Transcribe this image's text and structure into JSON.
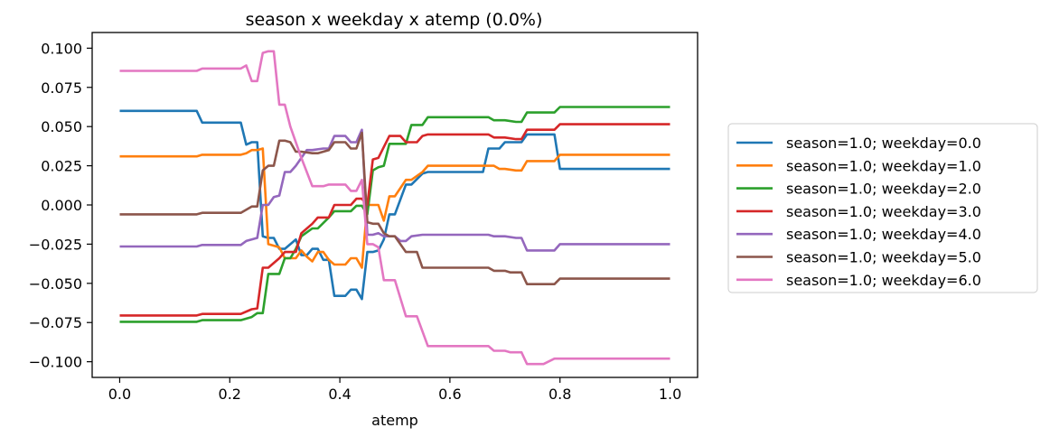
{
  "chart_data": {
    "type": "line",
    "title": "season x weekday x atemp (0.0%)",
    "xlabel": "atemp",
    "ylabel": "",
    "xlim": [
      -0.05,
      1.05
    ],
    "ylim": [
      -0.11,
      0.11
    ],
    "xticks": [
      0.0,
      0.2,
      0.4,
      0.6,
      0.8,
      1.0
    ],
    "xtick_labels": [
      "0.0",
      "0.2",
      "0.4",
      "0.6",
      "0.8",
      "1.0"
    ],
    "yticks": [
      0.1,
      0.075,
      0.05,
      0.025,
      0.0,
      -0.025,
      -0.05,
      -0.075,
      -0.1
    ],
    "ytick_labels": [
      "0.100",
      "0.075",
      "0.050",
      "0.025",
      "0.000",
      "−0.025",
      "−0.050",
      "−0.075",
      "−0.100"
    ],
    "grid": false,
    "legend_position": "right",
    "series": [
      {
        "name": "season=1.0; weekday=0.0",
        "color": "#1f77b4",
        "x": [
          0.0,
          0.14,
          0.15,
          0.22,
          0.23,
          0.24,
          0.25,
          0.26,
          0.27,
          0.28,
          0.29,
          0.3,
          0.32,
          0.33,
          0.34,
          0.35,
          0.36,
          0.37,
          0.38,
          0.39,
          0.41,
          0.42,
          0.43,
          0.44,
          0.45,
          0.46,
          0.47,
          0.48,
          0.49,
          0.5,
          0.52,
          0.53,
          0.55,
          0.56,
          0.58,
          0.66,
          0.67,
          0.69,
          0.7,
          0.73,
          0.74,
          0.79,
          0.8,
          1.0
        ],
        "y": [
          0.06,
          0.06,
          0.0525,
          0.0525,
          0.0385,
          0.04,
          0.04,
          -0.02,
          -0.021,
          -0.021,
          -0.028,
          -0.028,
          -0.022,
          -0.032,
          -0.032,
          -0.028,
          -0.028,
          -0.035,
          -0.035,
          -0.058,
          -0.058,
          -0.054,
          -0.054,
          -0.06,
          -0.03,
          -0.03,
          -0.029,
          -0.022,
          -0.006,
          -0.006,
          0.013,
          0.013,
          0.02,
          0.021,
          0.021,
          0.021,
          0.036,
          0.036,
          0.04,
          0.04,
          0.045,
          0.045,
          0.023,
          0.023
        ]
      },
      {
        "name": "season=1.0; weekday=1.0",
        "color": "#ff7f0e",
        "x": [
          0.0,
          0.14,
          0.15,
          0.22,
          0.23,
          0.24,
          0.25,
          0.26,
          0.27,
          0.29,
          0.3,
          0.32,
          0.33,
          0.34,
          0.35,
          0.36,
          0.37,
          0.38,
          0.39,
          0.41,
          0.42,
          0.43,
          0.44,
          0.45,
          0.46,
          0.47,
          0.48,
          0.49,
          0.5,
          0.52,
          0.53,
          0.55,
          0.56,
          0.68,
          0.69,
          0.7,
          0.72,
          0.73,
          0.74,
          0.79,
          0.8,
          1.0
        ],
        "y": [
          0.031,
          0.031,
          0.032,
          0.032,
          0.033,
          0.035,
          0.035,
          0.036,
          -0.025,
          -0.027,
          -0.034,
          -0.034,
          -0.029,
          -0.033,
          -0.036,
          -0.03,
          -0.03,
          -0.035,
          -0.038,
          -0.038,
          -0.034,
          -0.034,
          -0.04,
          0.0,
          0.0,
          0.0,
          -0.01,
          0.0055,
          0.0055,
          0.016,
          0.016,
          0.021,
          0.025,
          0.025,
          0.023,
          0.023,
          0.022,
          0.022,
          0.028,
          0.028,
          0.032,
          0.032
        ]
      },
      {
        "name": "season=1.0; weekday=2.0",
        "color": "#2ca02c",
        "x": [
          0.0,
          0.14,
          0.15,
          0.22,
          0.24,
          0.25,
          0.26,
          0.27,
          0.29,
          0.3,
          0.31,
          0.32,
          0.33,
          0.35,
          0.36,
          0.38,
          0.39,
          0.42,
          0.43,
          0.44,
          0.45,
          0.46,
          0.47,
          0.48,
          0.49,
          0.52,
          0.53,
          0.55,
          0.56,
          0.67,
          0.68,
          0.7,
          0.72,
          0.73,
          0.74,
          0.79,
          0.8,
          1.0
        ],
        "y": [
          -0.0745,
          -0.0745,
          -0.0735,
          -0.0735,
          -0.0715,
          -0.069,
          -0.069,
          -0.044,
          -0.044,
          -0.034,
          -0.034,
          -0.028,
          -0.02,
          -0.015,
          -0.015,
          -0.008,
          -0.004,
          -0.004,
          -0.0005,
          -0.0005,
          -0.006,
          0.022,
          0.024,
          0.025,
          0.039,
          0.039,
          0.051,
          0.051,
          0.056,
          0.056,
          0.054,
          0.054,
          0.053,
          0.053,
          0.059,
          0.059,
          0.0625,
          0.0625
        ]
      },
      {
        "name": "season=1.0; weekday=3.0",
        "color": "#d62728",
        "x": [
          0.0,
          0.14,
          0.15,
          0.22,
          0.24,
          0.25,
          0.26,
          0.27,
          0.29,
          0.3,
          0.32,
          0.33,
          0.35,
          0.36,
          0.38,
          0.39,
          0.42,
          0.43,
          0.44,
          0.45,
          0.46,
          0.47,
          0.49,
          0.51,
          0.52,
          0.54,
          0.55,
          0.56,
          0.67,
          0.68,
          0.7,
          0.72,
          0.73,
          0.74,
          0.79,
          0.8,
          1.0
        ],
        "y": [
          -0.0705,
          -0.0705,
          -0.0695,
          -0.0695,
          -0.0665,
          -0.066,
          -0.04,
          -0.04,
          -0.034,
          -0.03,
          -0.03,
          -0.018,
          -0.012,
          -0.008,
          -0.008,
          0.0,
          0.0,
          0.004,
          0.004,
          0.0,
          0.029,
          0.03,
          0.044,
          0.044,
          0.04,
          0.04,
          0.044,
          0.045,
          0.045,
          0.043,
          0.043,
          0.042,
          0.042,
          0.048,
          0.048,
          0.0515,
          0.0515
        ]
      },
      {
        "name": "season=1.0; weekday=4.0",
        "color": "#9467bd",
        "x": [
          0.0,
          0.14,
          0.15,
          0.22,
          0.23,
          0.25,
          0.26,
          0.27,
          0.28,
          0.29,
          0.3,
          0.31,
          0.32,
          0.33,
          0.34,
          0.35,
          0.37,
          0.38,
          0.39,
          0.41,
          0.42,
          0.43,
          0.44,
          0.45,
          0.46,
          0.47,
          0.48,
          0.5,
          0.51,
          0.52,
          0.53,
          0.55,
          0.56,
          0.67,
          0.68,
          0.7,
          0.72,
          0.73,
          0.74,
          0.79,
          0.8,
          1.0
        ],
        "y": [
          -0.0265,
          -0.0265,
          -0.0255,
          -0.0255,
          -0.023,
          -0.021,
          0.0,
          0.0,
          0.005,
          0.006,
          0.021,
          0.021,
          0.025,
          0.03,
          0.035,
          0.035,
          0.036,
          0.036,
          0.044,
          0.044,
          0.04,
          0.04,
          0.048,
          -0.019,
          -0.019,
          -0.018,
          -0.02,
          -0.02,
          -0.023,
          -0.023,
          -0.02,
          -0.019,
          -0.019,
          -0.019,
          -0.02,
          -0.02,
          -0.021,
          -0.021,
          -0.029,
          -0.029,
          -0.025,
          -0.025
        ]
      },
      {
        "name": "season=1.0; weekday=5.0",
        "color": "#8c564b",
        "x": [
          0.0,
          0.14,
          0.15,
          0.22,
          0.24,
          0.25,
          0.26,
          0.27,
          0.28,
          0.29,
          0.3,
          0.31,
          0.32,
          0.33,
          0.35,
          0.36,
          0.38,
          0.39,
          0.41,
          0.42,
          0.43,
          0.44,
          0.45,
          0.46,
          0.47,
          0.48,
          0.49,
          0.5,
          0.52,
          0.54,
          0.55,
          0.56,
          0.67,
          0.68,
          0.7,
          0.71,
          0.73,
          0.74,
          0.79,
          0.8,
          1.0
        ],
        "y": [
          -0.006,
          -0.006,
          -0.005,
          -0.005,
          -0.001,
          -0.001,
          0.022,
          0.025,
          0.025,
          0.041,
          0.041,
          0.04,
          0.034,
          0.034,
          0.033,
          0.033,
          0.035,
          0.04,
          0.04,
          0.036,
          0.036,
          0.046,
          -0.011,
          -0.012,
          -0.012,
          -0.018,
          -0.02,
          -0.02,
          -0.03,
          -0.03,
          -0.04,
          -0.04,
          -0.04,
          -0.042,
          -0.042,
          -0.043,
          -0.043,
          -0.0505,
          -0.0505,
          -0.047,
          -0.047
        ]
      },
      {
        "name": "season=1.0; weekday=6.0",
        "color": "#e377c2",
        "x": [
          0.0,
          0.14,
          0.15,
          0.22,
          0.23,
          0.24,
          0.25,
          0.26,
          0.27,
          0.28,
          0.29,
          0.3,
          0.31,
          0.33,
          0.35,
          0.37,
          0.38,
          0.41,
          0.42,
          0.43,
          0.44,
          0.45,
          0.46,
          0.47,
          0.48,
          0.5,
          0.52,
          0.54,
          0.56,
          0.67,
          0.68,
          0.7,
          0.71,
          0.73,
          0.74,
          0.77,
          0.79,
          0.8,
          1.0
        ],
        "y": [
          0.0855,
          0.0855,
          0.087,
          0.087,
          0.089,
          0.079,
          0.079,
          0.097,
          0.098,
          0.098,
          0.064,
          0.064,
          0.05,
          0.03,
          0.012,
          0.012,
          0.013,
          0.013,
          0.009,
          0.009,
          0.016,
          -0.025,
          -0.025,
          -0.027,
          -0.048,
          -0.048,
          -0.071,
          -0.071,
          -0.09,
          -0.09,
          -0.093,
          -0.093,
          -0.094,
          -0.094,
          -0.1015,
          -0.1015,
          -0.098,
          -0.098,
          -0.098
        ]
      }
    ]
  }
}
